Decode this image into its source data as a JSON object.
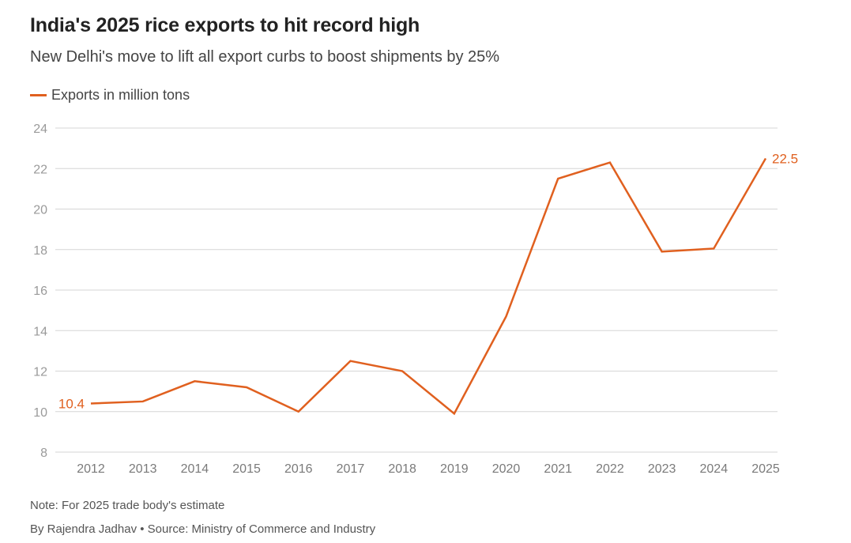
{
  "header": {
    "title": "India's 2025 rice exports to hit record high",
    "subtitle": "New Delhi's move to lift all export curbs to boost shipments by 25%"
  },
  "footer": {
    "note": "Note: For 2025 trade body's estimate",
    "byline": "By Rajendra Jadhav • Source: Ministry of Commerce and Industry"
  },
  "colors": {
    "series": "#e0601f",
    "grid": "#d6d6d6",
    "axis_text": "#9a9a9a"
  },
  "chart_data": {
    "type": "line",
    "title": "India's 2025 rice exports to hit record high",
    "subtitle": "New Delhi's move to lift all export curbs to boost shipments by 25%",
    "x": [
      "2012",
      "2013",
      "2014",
      "2015",
      "2016",
      "2017",
      "2018",
      "2019",
      "2020",
      "2021",
      "2022",
      "2023",
      "2024",
      "2025"
    ],
    "series": [
      {
        "name": "Exports in million tons",
        "values": [
          10.4,
          10.5,
          11.5,
          11.2,
          10.0,
          12.5,
          12.0,
          9.9,
          14.7,
          21.5,
          22.3,
          17.9,
          18.05,
          22.5
        ]
      }
    ],
    "ylim": [
      8,
      24
    ],
    "yticks": [
      8,
      10,
      12,
      14,
      16,
      18,
      20,
      22,
      24
    ],
    "grid": true,
    "legend": "top-left",
    "annotations": [
      {
        "label": "10.4",
        "index": 0,
        "position": "left"
      },
      {
        "label": "22.5",
        "index": 13,
        "position": "right"
      }
    ]
  }
}
